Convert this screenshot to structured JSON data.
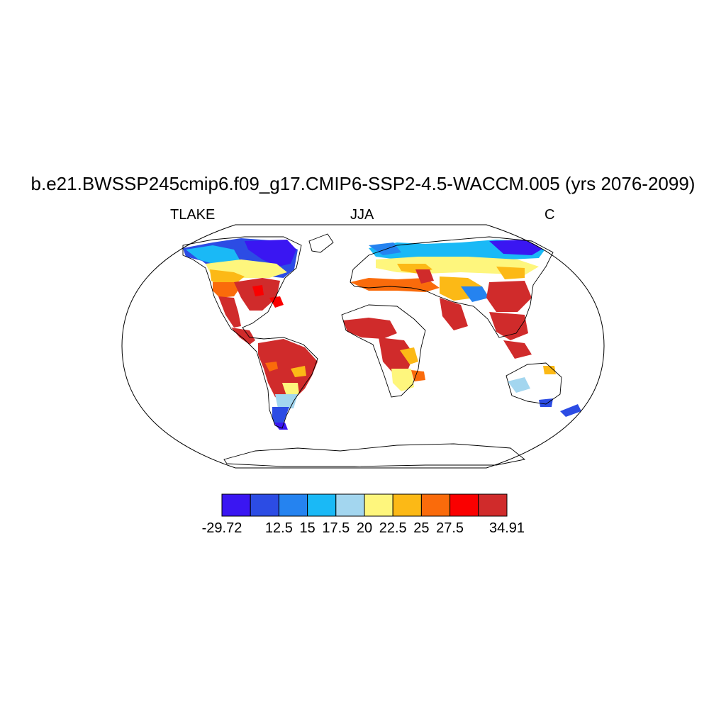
{
  "title": "b.e21.BWSSP245cmip6.f09_g17.CMIP6-SSP2-4.5-WACCM.005 (yrs 2076-2099)",
  "subtitle_left": "TLAKE",
  "subtitle_center": "JJA",
  "subtitle_right": "C",
  "colorbar": {
    "colors": [
      "#3a16f2",
      "#2c4ce4",
      "#2583f0",
      "#1ab9f6",
      "#a3d6ef",
      "#fef67d",
      "#fcb916",
      "#fa6b0b",
      "#fa0000",
      "#d02b2b"
    ],
    "labels": [
      "-29.72",
      "12.5",
      "15",
      "17.5",
      "20",
      "22.5",
      "25",
      "27.5",
      "34.91"
    ],
    "label_boundaries": [
      0,
      2,
      3,
      4,
      5,
      6,
      7,
      8,
      10
    ]
  }
}
